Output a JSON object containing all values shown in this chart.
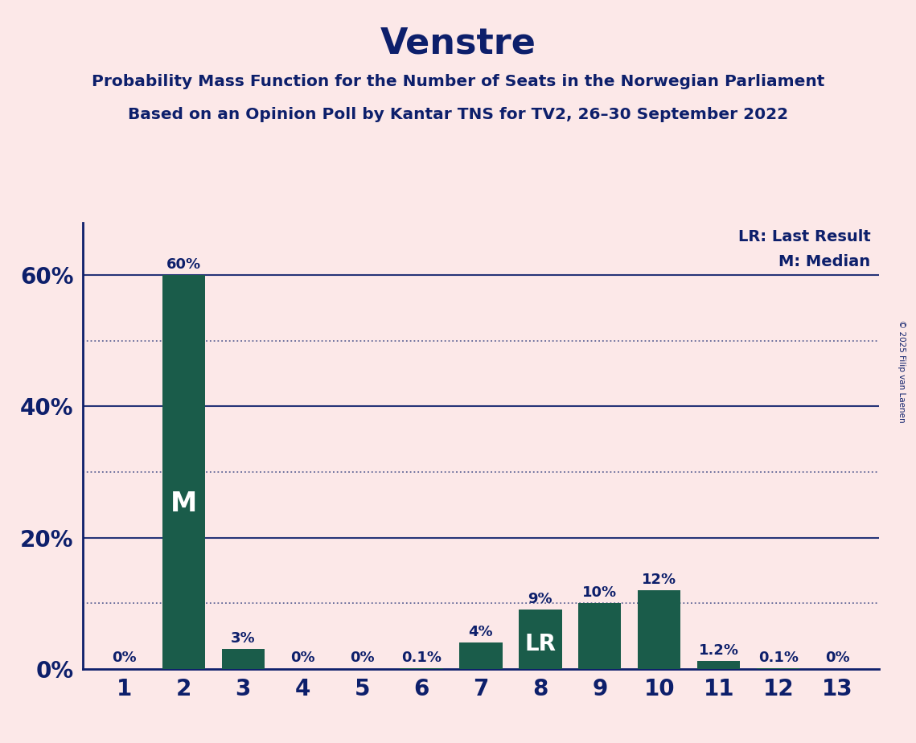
{
  "title": "Venstre",
  "subtitle1": "Probability Mass Function for the Number of Seats in the Norwegian Parliament",
  "subtitle2": "Based on an Opinion Poll by Kantar TNS for TV2, 26–30 September 2022",
  "copyright": "© 2025 Filip van Laenen",
  "categories": [
    1,
    2,
    3,
    4,
    5,
    6,
    7,
    8,
    9,
    10,
    11,
    12,
    13
  ],
  "values": [
    0.0,
    60.0,
    3.0,
    0.0,
    0.0,
    0.1,
    4.0,
    9.0,
    10.0,
    12.0,
    1.2,
    0.1,
    0.0
  ],
  "labels": [
    "0%",
    "60%",
    "3%",
    "0%",
    "0%",
    "0.1%",
    "4%",
    "9%",
    "10%",
    "12%",
    "1.2%",
    "0.1%",
    "0%"
  ],
  "bar_color": "#1a5c4a",
  "median_bar_index": 1,
  "lr_bar_index": 7,
  "background_color": "#fce8e8",
  "axis_color": "#0d1f6b",
  "title_color": "#0d1f6b",
  "legend_lr": "LR: Last Result",
  "legend_m": "M: Median",
  "yticks": [
    0,
    20,
    40,
    60
  ],
  "ytick_labels": [
    "0%",
    "20%",
    "40%",
    "60%"
  ],
  "ylim": [
    0,
    68
  ],
  "dotted_lines": [
    10,
    30,
    50
  ],
  "solid_lines": [
    20,
    40,
    60
  ]
}
